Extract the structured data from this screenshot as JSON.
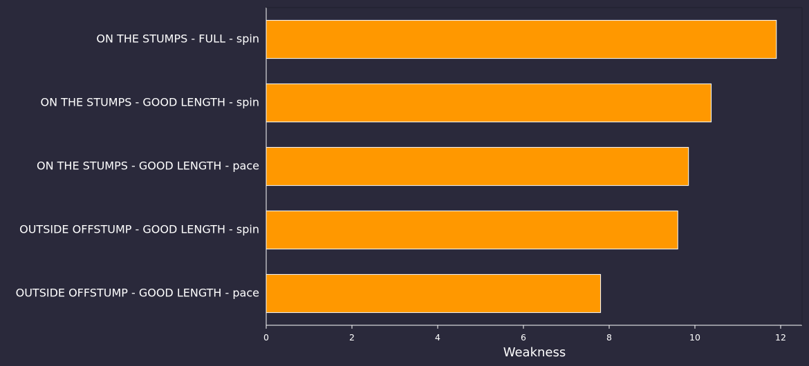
{
  "colors": {
    "background": "#2a293b",
    "bar_fill": "#ff9800",
    "bar_edge": "#ffffff",
    "axis": "#ffffff",
    "text": "#ffffff"
  },
  "chart_data": {
    "type": "bar",
    "orientation": "horizontal",
    "categories": [
      "ON THE STUMPS - FULL - spin",
      "ON THE STUMPS - GOOD LENGTH - spin",
      "ON THE STUMPS - GOOD LENGTH - pace",
      "OUTSIDE OFFSTUMP - GOOD LENGTH - spin",
      "OUTSIDE OFFSTUMP - GOOD LENGTH - pace"
    ],
    "values": [
      11.9,
      10.38,
      9.85,
      9.6,
      7.8
    ],
    "title": "",
    "xlabel": "Weakness",
    "ylabel": "",
    "xlim": [
      0,
      12.5
    ],
    "xticks": [
      "0",
      "2",
      "4",
      "6",
      "8",
      "10",
      "12"
    ],
    "grid": false,
    "legend": false
  }
}
